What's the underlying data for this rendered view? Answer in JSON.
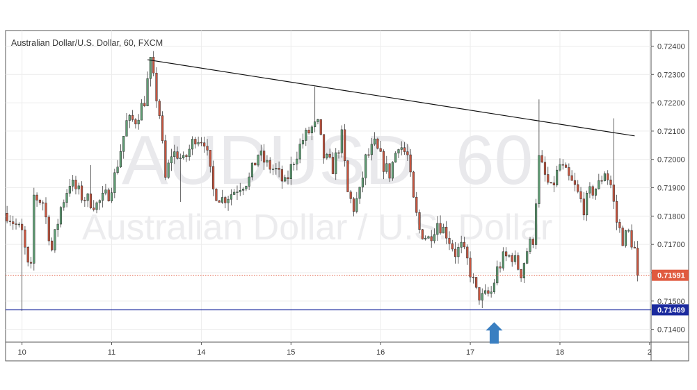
{
  "chart_data": {
    "type": "candlestick",
    "legend": {
      "symbol": "Australian Dollar/U.S. Dollar",
      "interval": "60",
      "exchange": "FXCM"
    },
    "watermark": {
      "ticker": "AUDUSD",
      "interval": "60",
      "description": "Australian Dollar / U.S. Dollar"
    },
    "y_axis": {
      "range": [
        0.71355,
        0.72455
      ],
      "ticks": [
        "0.72400",
        "0.72300",
        "0.72200",
        "0.72100",
        "0.72000",
        "0.71900",
        "0.71800",
        "0.71700",
        "0.71600",
        "0.71500",
        "0.71400"
      ],
      "position": "right"
    },
    "x_axis": {
      "ticks": [
        {
          "label": "10",
          "index": 5
        },
        {
          "label": "11",
          "index": 35
        },
        {
          "label": "14",
          "index": 65
        },
        {
          "label": "15",
          "index": 95
        },
        {
          "label": "16",
          "index": 125
        },
        {
          "label": "17",
          "index": 155
        },
        {
          "label": "18",
          "index": 185
        },
        {
          "label": "2",
          "index": 215
        }
      ],
      "n_slots": 216
    },
    "grid": true,
    "colors": {
      "up": "#5f9e74",
      "down": "#c8553f",
      "trendline": "#111111",
      "support_line": "#1b2a9e",
      "current_price": "#e05a3f",
      "arrow": "#3a7fc1"
    },
    "current_price": "0.71591",
    "support_level": "0.71469",
    "support_value": 0.71469,
    "current_value": 0.71591,
    "trendline": {
      "from": {
        "index": 47,
        "value": 0.72352
      },
      "to": {
        "index": 210,
        "value": 0.72083
      }
    },
    "arrow": {
      "index": 163,
      "value": 0.71445
    },
    "anchors": [
      [
        0,
        0.7181
      ],
      [
        5,
        0.7174
      ],
      [
        7,
        0.7162
      ],
      [
        8,
        0.7161
      ],
      [
        9,
        0.7187
      ],
      [
        12,
        0.7185
      ],
      [
        15,
        0.7168
      ],
      [
        18,
        0.7183
      ],
      [
        21,
        0.7192
      ],
      [
        25,
        0.7187
      ],
      [
        30,
        0.7184
      ],
      [
        34,
        0.7188
      ],
      [
        36,
        0.7194
      ],
      [
        40,
        0.7213
      ],
      [
        43,
        0.7214
      ],
      [
        46,
        0.7221
      ],
      [
        48,
        0.7234
      ],
      [
        51,
        0.7216
      ],
      [
        53,
        0.7193
      ],
      [
        55,
        0.7202
      ],
      [
        57,
        0.7202
      ],
      [
        59,
        0.7199
      ],
      [
        63,
        0.7208
      ],
      [
        66,
        0.7207
      ],
      [
        69,
        0.7189
      ],
      [
        72,
        0.7186
      ],
      [
        75,
        0.7188
      ],
      [
        78,
        0.7191
      ],
      [
        81,
        0.7193
      ],
      [
        84,
        0.7202
      ],
      [
        87,
        0.7198
      ],
      [
        90,
        0.7196
      ],
      [
        93,
        0.7191
      ],
      [
        96,
        0.72
      ],
      [
        99,
        0.7207
      ],
      [
        102,
        0.7211
      ],
      [
        104,
        0.7212
      ],
      [
        106,
        0.7201
      ],
      [
        109,
        0.7197
      ],
      [
        112,
        0.7208
      ],
      [
        114,
        0.7188
      ],
      [
        116,
        0.7183
      ],
      [
        118,
        0.7188
      ],
      [
        120,
        0.72
      ],
      [
        123,
        0.7205
      ],
      [
        126,
        0.7198
      ],
      [
        128,
        0.7195
      ],
      [
        131,
        0.7206
      ],
      [
        134,
        0.7201
      ],
      [
        136,
        0.7185
      ],
      [
        138,
        0.7175
      ],
      [
        141,
        0.7172
      ],
      [
        144,
        0.7178
      ],
      [
        147,
        0.7174
      ],
      [
        150,
        0.7167
      ],
      [
        152,
        0.7169
      ],
      [
        154,
        0.7164
      ],
      [
        157,
        0.7153
      ],
      [
        159,
        0.7151
      ],
      [
        162,
        0.7153
      ],
      [
        164,
        0.7161
      ],
      [
        166,
        0.7165
      ],
      [
        169,
        0.7166
      ],
      [
        172,
        0.716
      ],
      [
        174,
        0.7168
      ],
      [
        176,
        0.7172
      ],
      [
        178,
        0.72
      ],
      [
        180,
        0.7194
      ],
      [
        182,
        0.7189
      ],
      [
        185,
        0.7198
      ],
      [
        188,
        0.7193
      ],
      [
        190,
        0.719
      ],
      [
        193,
        0.7183
      ],
      [
        195,
        0.7188
      ],
      [
        198,
        0.7191
      ],
      [
        200,
        0.7196
      ],
      [
        202,
        0.7191
      ],
      [
        204,
        0.7178
      ],
      [
        206,
        0.7172
      ],
      [
        208,
        0.7174
      ],
      [
        210,
        0.7168
      ],
      [
        211,
        0.7159
      ]
    ],
    "spikes": [
      {
        "index": 5,
        "low": 0.71465
      },
      {
        "index": 48,
        "high": 0.72345
      },
      {
        "index": 103,
        "high": 0.72257
      },
      {
        "index": 159,
        "low": 0.71475
      },
      {
        "index": 178,
        "high": 0.72212
      },
      {
        "index": 203,
        "high": 0.72145
      },
      {
        "index": 28,
        "high": 0.7198
      },
      {
        "index": 58,
        "low": 0.7185
      }
    ]
  }
}
